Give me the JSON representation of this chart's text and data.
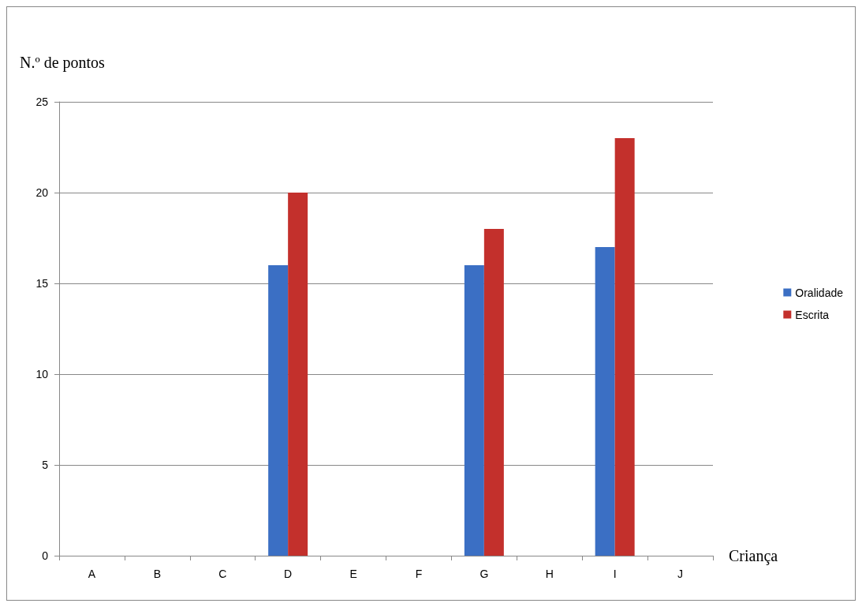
{
  "chart_data": {
    "type": "bar",
    "ylabel": "N.º de pontos",
    "xlabel": "Criança",
    "categories": [
      "A",
      "B",
      "C",
      "D",
      "E",
      "F",
      "G",
      "H",
      "I",
      "J"
    ],
    "series": [
      {
        "name": "Oralidade",
        "color": "#3b6fc4",
        "values": [
          null,
          null,
          null,
          16,
          null,
          null,
          16,
          null,
          17,
          null
        ]
      },
      {
        "name": "Escrita",
        "color": "#c3302c",
        "values": [
          null,
          null,
          null,
          20,
          null,
          null,
          18,
          null,
          23,
          null
        ]
      }
    ],
    "ylim": [
      0,
      25
    ],
    "yticks": [
      0,
      5,
      10,
      15,
      20,
      25
    ],
    "grid": "y",
    "legend": "right"
  }
}
